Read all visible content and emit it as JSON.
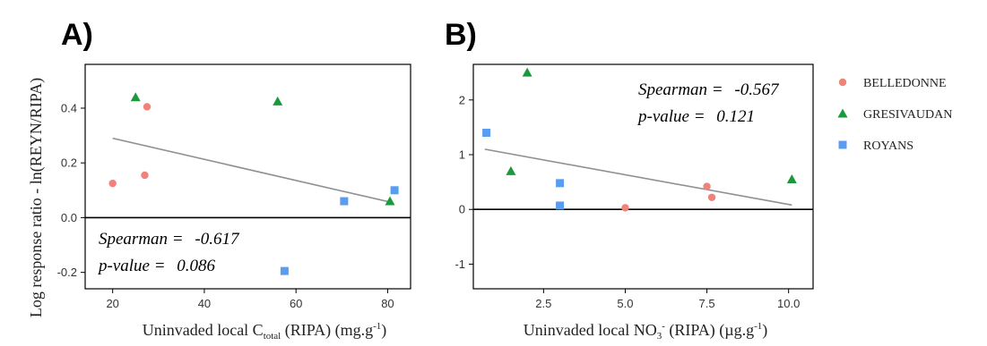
{
  "colors": {
    "BELLEDONNE": "#f0827a",
    "GRESIVAUDAN": "#1a9a3a",
    "ROYANS": "#5a9cf0",
    "regression": "#909090",
    "zero_line": "#000000"
  },
  "legend": {
    "items": [
      {
        "name": "BELLEDONNE",
        "marker": "circle"
      },
      {
        "name": "GRESIVAUDAN",
        "marker": "triangle"
      },
      {
        "name": "ROYANS",
        "marker": "square"
      }
    ]
  },
  "shared_ylabel": "Log response ratio - ln(REYN/RIPA)",
  "chart_data": [
    {
      "type": "scatter",
      "panel": "A)",
      "xlabel": {
        "base": "Uninvaded local C",
        "sub": "total",
        "rest": " (RIPA) (mg.g",
        "sup": "-1",
        "close": ")"
      },
      "xlim": [
        14,
        85
      ],
      "ylim": [
        -0.26,
        0.56
      ],
      "xticks": [
        20,
        40,
        60,
        80
      ],
      "xtick_labels": [
        "20",
        "40",
        "60",
        "80"
      ],
      "yticks": [
        -0.2,
        0.0,
        0.2,
        0.4
      ],
      "ytick_labels": [
        "-0.2",
        "0.0",
        "0.2",
        "0.4"
      ],
      "hline": 0,
      "fit": {
        "x": [
          20,
          81
        ],
        "y": [
          0.29,
          0.055
        ]
      },
      "annotation": {
        "line1_label": "Spearman = ",
        "line1_value": "-0.617",
        "line2_label": "p-value = ",
        "line2_value": "0.086",
        "position": "bottom-left"
      },
      "series": [
        {
          "name": "BELLEDONNE",
          "x": [
            20,
            27,
            27.5
          ],
          "y": [
            0.125,
            0.155,
            0.405
          ]
        },
        {
          "name": "GRESIVAUDAN",
          "x": [
            25,
            56,
            80.5
          ],
          "y": [
            0.44,
            0.425,
            0.06
          ]
        },
        {
          "name": "ROYANS",
          "x": [
            57.5,
            70.5,
            81.5
          ],
          "y": [
            -0.195,
            0.06,
            0.1
          ]
        }
      ]
    },
    {
      "type": "scatter",
      "panel": "B)",
      "xlabel": {
        "base": "Uninvaded local NO",
        "sub": "3",
        "sup": "-",
        "rest": " (RIPA) (µg.g",
        "sup2": "-1",
        "close": ")"
      },
      "xlim": [
        0.35,
        10.75
      ],
      "ylim": [
        -1.45,
        2.65
      ],
      "xticks": [
        2.5,
        5.0,
        7.5,
        10.0
      ],
      "xtick_labels": [
        "2.5",
        "5.0",
        "7.5",
        "10.0"
      ],
      "yticks": [
        -1,
        0,
        1,
        2
      ],
      "ytick_labels": [
        "-1",
        "0",
        "1",
        "2"
      ],
      "hline": 0,
      "fit": {
        "x": [
          0.7,
          10.1
        ],
        "y": [
          1.1,
          0.08
        ]
      },
      "annotation": {
        "line1_label": "Spearman = ",
        "line1_value": "-0.567",
        "line2_label": "p-value = ",
        "line2_value": "0.121",
        "position": "top-right"
      },
      "series": [
        {
          "name": "BELLEDONNE",
          "x": [
            5.0,
            7.5,
            7.65
          ],
          "y": [
            0.03,
            0.42,
            0.22
          ]
        },
        {
          "name": "GRESIVAUDAN",
          "x": [
            1.5,
            2.0,
            10.1
          ],
          "y": [
            0.7,
            2.5,
            0.55
          ]
        },
        {
          "name": "ROYANS",
          "x": [
            0.75,
            3.0,
            3.0
          ],
          "y": [
            1.4,
            0.48,
            0.07
          ]
        }
      ]
    }
  ]
}
